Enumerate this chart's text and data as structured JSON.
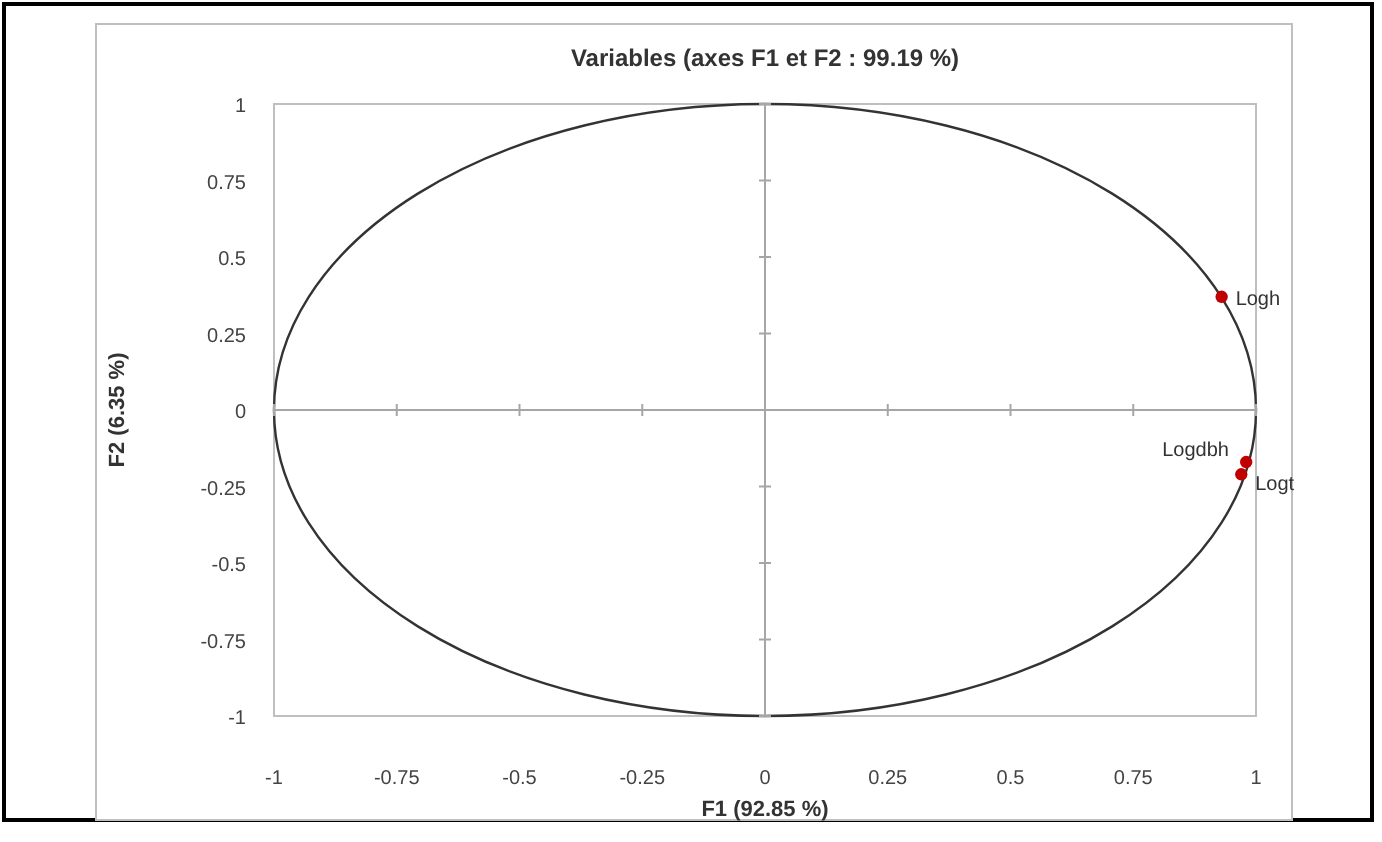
{
  "chart_data": {
    "type": "scatter",
    "title": "Variables (axes F1 et F2 : 99.19 %)",
    "xlabel": "F1 (92.85 %)",
    "ylabel": "F2 (6.35 %)",
    "series": [
      {
        "color": "#c00000",
        "x": [
          0.93,
          0.98,
          0.97
        ],
        "values": [
          0.37,
          -0.17,
          -0.21
        ]
      }
    ],
    "annotations": [
      {
        "text": "Logh",
        "x": 0.93,
        "y": 0.37
      },
      {
        "text": "Logdbh",
        "x": 0.98,
        "y": -0.17
      },
      {
        "text": "Logt",
        "x": 0.97,
        "y": -0.21
      }
    ],
    "xlim": [
      -1,
      1
    ],
    "ylim": [
      -1,
      1
    ],
    "xticks": [
      -1,
      -0.75,
      -0.5,
      -0.25,
      0,
      0.25,
      0.5,
      0.75,
      1
    ],
    "yticks": [
      -1,
      -0.75,
      -0.5,
      -0.25,
      0,
      0.25,
      0.5,
      0.75,
      1
    ],
    "marker": "circle"
  }
}
